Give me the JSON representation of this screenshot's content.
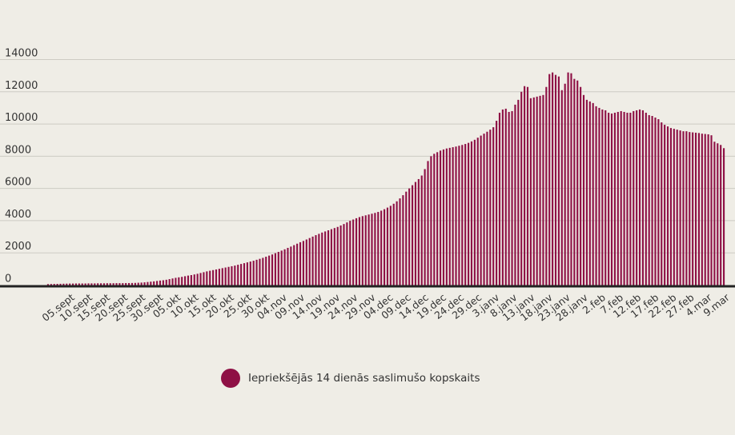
{
  "chart_data": {
    "type": "bar",
    "title": "",
    "xlabel": "",
    "ylabel": "",
    "ylim": [
      0,
      14000
    ],
    "yticks": [
      "0",
      "2000",
      "4000",
      "6000",
      "8000",
      "10000",
      "12000",
      "14000"
    ],
    "grid": true,
    "color": "#8e1045",
    "x_tick_labels": [
      "05.sept",
      "10.sept",
      "15.sept",
      "20.sept",
      "25.sept",
      "30.sept",
      "05.okt",
      "10.okt",
      "15.okt",
      "20.okt",
      "25.okt",
      "30.okt",
      "04.nov",
      "09.nov",
      "14.nov",
      "19.nov",
      "24.nov",
      "29.nov",
      "04.dec",
      "09.dec",
      "14.dec",
      "19.dec",
      "24.dec",
      "29.dec",
      "3.janv",
      "8.janv",
      "13.janv",
      "18.janv",
      "23.janv",
      "28.janv",
      "2.feb",
      "7.feb",
      "12.feb",
      "17.feb",
      "22.feb",
      "27.feb",
      "4.mar",
      "9.mar"
    ],
    "x_start": "01.sept",
    "x_end": "09.mar",
    "series": [
      {
        "name": "Iepriekšējās 14 dienās saslimušo kopskaits",
        "values": [
          60,
          65,
          70,
          75,
          80,
          85,
          90,
          95,
          95,
          100,
          100,
          100,
          100,
          105,
          105,
          105,
          110,
          110,
          110,
          115,
          115,
          115,
          120,
          120,
          120,
          125,
          125,
          130,
          135,
          145,
          155,
          170,
          190,
          210,
          230,
          255,
          280,
          300,
          330,
          370,
          410,
          450,
          480,
          510,
          550,
          590,
          620,
          660,
          700,
          750,
          800,
          850,
          890,
          930,
          970,
          1010,
          1050,
          1090,
          1130,
          1170,
          1210,
          1260,
          1310,
          1360,
          1410,
          1460,
          1510,
          1570,
          1630,
          1690,
          1760,
          1830,
          1900,
          1980,
          2060,
          2140,
          2220,
          2310,
          2390,
          2480,
          2570,
          2660,
          2740,
          2830,
          2920,
          3010,
          3100,
          3180,
          3260,
          3330,
          3400,
          3470,
          3540,
          3610,
          3700,
          3790,
          3890,
          3990,
          4070,
          4150,
          4220,
          4280,
          4330,
          4380,
          4430,
          4480,
          4540,
          4620,
          4710,
          4810,
          4920,
          5050,
          5200,
          5380,
          5580,
          5800,
          6000,
          6200,
          6400,
          6580,
          6800,
          7200,
          7700,
          8000,
          8150,
          8250,
          8350,
          8420,
          8480,
          8520,
          8560,
          8600,
          8650,
          8700,
          8760,
          8830,
          8920,
          9020,
          9150,
          9280,
          9400,
          9520,
          9650,
          9800,
          10200,
          10700,
          10900,
          10950,
          10750,
          10800,
          11200,
          11500,
          12000,
          12350,
          12300,
          11600,
          11650,
          11700,
          11750,
          11800,
          12300,
          13100,
          13200,
          13050,
          12950,
          12100,
          12500,
          13200,
          13150,
          12800,
          12700,
          12300,
          11800,
          11500,
          11400,
          11300,
          11100,
          11000,
          10900,
          10850,
          10700,
          10650,
          10700,
          10750,
          10800,
          10750,
          10700,
          10700,
          10800,
          10850,
          10900,
          10850,
          10700,
          10550,
          10500,
          10400,
          10300,
          10100,
          9950,
          9850,
          9750,
          9700,
          9650,
          9600,
          9550,
          9550,
          9500,
          9480,
          9460,
          9440,
          9400,
          9380,
          9360,
          9300,
          8900,
          8800,
          8700,
          8500
        ]
      }
    ]
  },
  "legend": {
    "label": "Iepriekšējās 14 dienās saslimušo kopskaits"
  }
}
